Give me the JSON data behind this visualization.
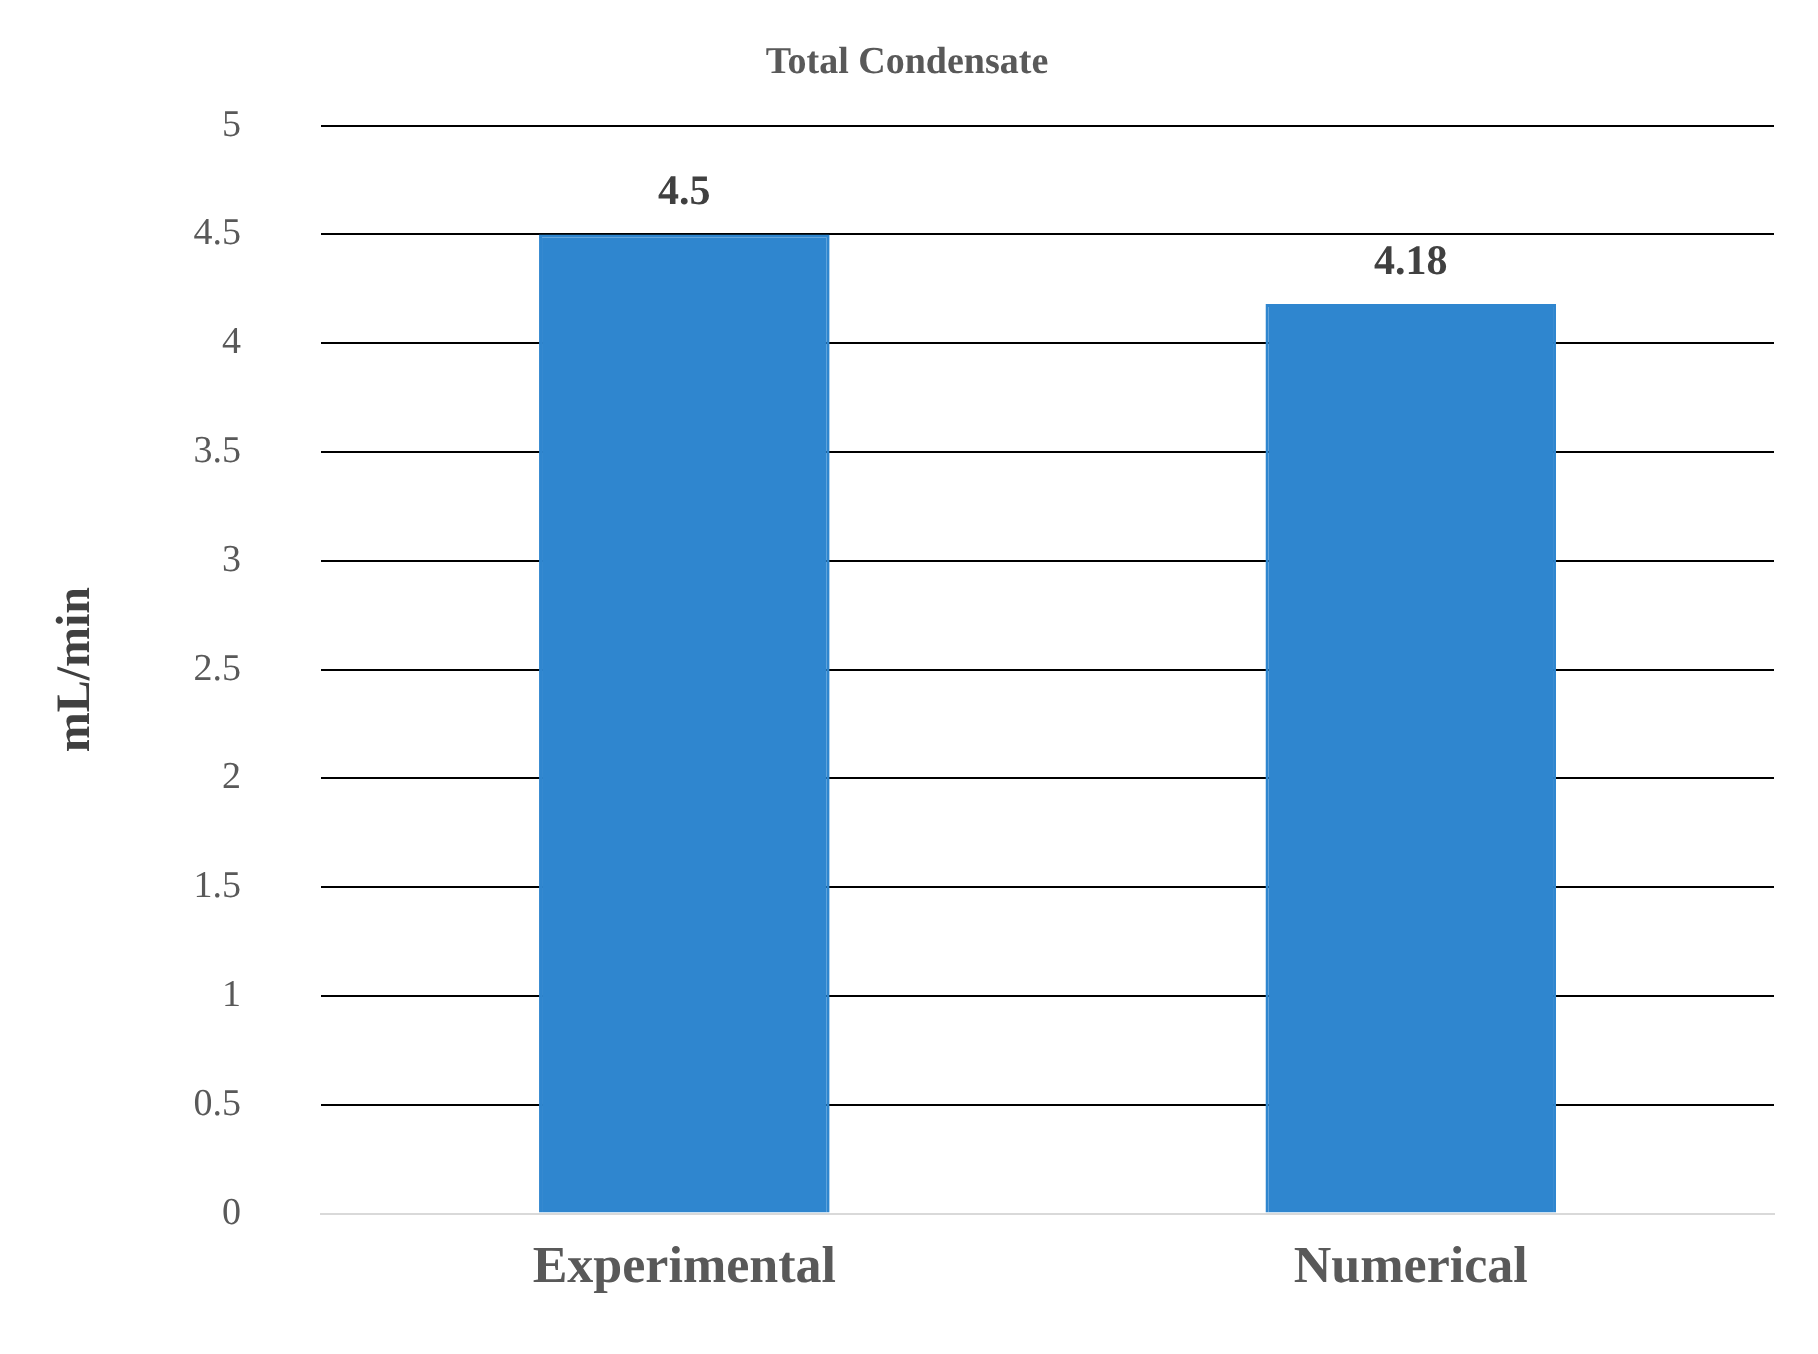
{
  "chart_data": {
    "type": "bar",
    "title": "Total Condensate",
    "ylabel": "mL/min",
    "categories": [
      "Experimental",
      "Numerical"
    ],
    "values": [
      4.5,
      4.18
    ],
    "color": "#2f86cf",
    "ylim": [
      0,
      5
    ],
    "yticks": [
      0,
      0.5,
      1,
      1.5,
      2,
      2.5,
      3,
      3.5,
      4,
      4.5,
      5
    ],
    "grid": "y",
    "data_labels": true
  }
}
